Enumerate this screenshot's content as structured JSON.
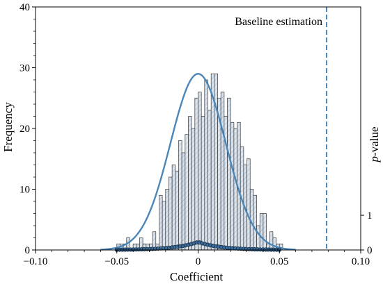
{
  "chart_data": {
    "type": "bar",
    "title": "",
    "xlabel": "Coefficient",
    "ylabel": "Frequency",
    "ylabel_right": "p-value",
    "ylabel_right_prefix": "p",
    "ylabel_right_suffix": "-value",
    "xlim": [
      -0.1,
      0.1
    ],
    "ylim": [
      0,
      40
    ],
    "x_ticks": [
      -0.1,
      -0.05,
      0,
      0.05,
      0.1
    ],
    "x_tick_labels": [
      "−0.10",
      "−0.05",
      "0",
      "0.05",
      "0.10"
    ],
    "y_ticks": [
      0,
      10,
      20,
      30,
      40
    ],
    "y_tick_labels": [
      "0",
      "10",
      "20",
      "30",
      "40"
    ],
    "y_right_range": [
      0,
      1
    ],
    "y_right_tick_labels": [
      "0",
      "1"
    ],
    "grid": false,
    "histogram": {
      "bin_width": 0.002,
      "bin_edges_start": -0.05,
      "counts": [
        1,
        1,
        1,
        2,
        0,
        1,
        1,
        2,
        1,
        1,
        1,
        3,
        1,
        9,
        8,
        10,
        12,
        14,
        13,
        18,
        16,
        19,
        22,
        20,
        25,
        26,
        22,
        28,
        23,
        29,
        29,
        25,
        26,
        22,
        25,
        21,
        20,
        21,
        17,
        14,
        15,
        10,
        9,
        4,
        6,
        6,
        1,
        3,
        2,
        1,
        1
      ]
    },
    "kde_curve": {
      "name": "",
      "peak_x": 0,
      "peak_y": 29,
      "sigma": 0.017,
      "color": "#4a86b8"
    },
    "p_value_points": {
      "name": "",
      "peak_x": 0,
      "peak_value": 0.23,
      "decay": 0.014,
      "x_range": [
        -0.05,
        0.05
      ],
      "count": 60
    },
    "baseline": {
      "x": 0.079,
      "label": "Baseline estimation",
      "color": "#4a86b8"
    },
    "colors": {
      "bar_fill": "#dbe4ee",
      "bar_edge": "#333333",
      "curve": "#4a86b8",
      "marker_fill": "#3a6d9e",
      "marker_edge": "#1a2f44"
    }
  }
}
